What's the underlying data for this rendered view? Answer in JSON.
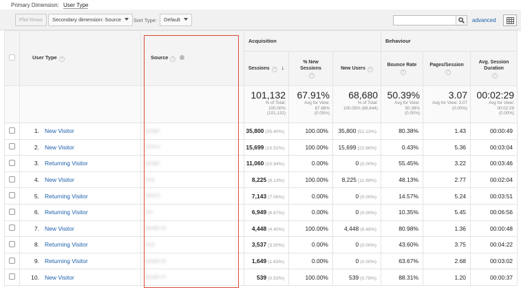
{
  "primary_dimension": {
    "label": "Primary Dimension:",
    "value": "User Type"
  },
  "toolbar": {
    "plot_rows": "Plot Rows",
    "secondary_dimension": "Secondary dimension: Source",
    "sort_type_label": "Sort Type:",
    "sort_type_value": "Default",
    "search_value": "",
    "advanced": "advanced"
  },
  "groups": {
    "acquisition": "Acquisition",
    "behaviour": "Behaviour"
  },
  "columns": {
    "user_type": "User Type",
    "source": "Source",
    "sessions": "Sessions",
    "new_sessions": "% New Sessions",
    "new_users": "New Users",
    "bounce_rate": "Bounce Rate",
    "pages_session": "Pages/Session",
    "avg_duration": "Avg. Session Duration"
  },
  "totals": {
    "sessions": {
      "value": "101,132",
      "line1": "% of Total:",
      "line2": "100.00%",
      "line3": "(101,132)"
    },
    "new_sessions": {
      "value": "67.91%",
      "line1": "Avg for View:",
      "line2": "67.88%",
      "line3": "(0.05%)"
    },
    "new_users": {
      "value": "68,680",
      "line1": "% of Total:",
      "line2": "100.05% (68,644)",
      "line3": ""
    },
    "bounce_rate": {
      "value": "50.39%",
      "line1": "Avg for View:",
      "line2": "50.39%",
      "line3": "(0.00%)"
    },
    "pages_session": {
      "value": "3.07",
      "line1": "Avg for View: 3.07",
      "line2": "(0.00%)",
      "line3": ""
    },
    "avg_duration": {
      "value": "00:02:29",
      "line1": "Avg for View:",
      "line2": "00:02:29",
      "line3": "(0.00%)"
    }
  },
  "rows": [
    {
      "idx": "1.",
      "user_type": "New Visitor",
      "source": "google",
      "sessions": "35,800",
      "sessions_pct": "(35.40%)",
      "new_sessions": "100.00%",
      "new_users": "35,800",
      "new_users_pct": "(52.13%)",
      "bounce_rate": "80.38%",
      "pages_session": "1.43",
      "avg_duration": "00:00:49"
    },
    {
      "idx": "2.",
      "user_type": "New Visitor",
      "source": "(direct)",
      "sessions": "15,699",
      "sessions_pct": "(15.52%)",
      "new_sessions": "100.00%",
      "new_users": "15,699",
      "new_users_pct": "(22.86%)",
      "bounce_rate": "0.43%",
      "pages_session": "5.36",
      "avg_duration": "00:03:04"
    },
    {
      "idx": "3.",
      "user_type": "Returning Visitor",
      "source": "google",
      "sessions": "11,060",
      "sessions_pct": "(10.94%)",
      "new_sessions": "0.00%",
      "new_users": "0",
      "new_users_pct": "(0.00%)",
      "bounce_rate": "55.45%",
      "pages_session": "3.22",
      "avg_duration": "00:03:46"
    },
    {
      "idx": "4.",
      "user_type": "New Visitor",
      "source": "bing",
      "sessions": "8,225",
      "sessions_pct": "(8.13%)",
      "new_sessions": "100.00%",
      "new_users": "8,225",
      "new_users_pct": "(11.98%)",
      "bounce_rate": "48.13%",
      "pages_session": "2.77",
      "avg_duration": "00:02:04"
    },
    {
      "idx": "5.",
      "user_type": "Returning Visitor",
      "source": "(direct)",
      "sessions": "7,143",
      "sessions_pct": "(7.06%)",
      "new_sessions": "0.00%",
      "new_users": "0",
      "new_users_pct": "(0.00%)",
      "bounce_rate": "14.57%",
      "pages_session": "5.24",
      "avg_duration": "00:03:51"
    },
    {
      "idx": "6.",
      "user_type": "Returning Visitor",
      "source": "site",
      "sessions": "6,949",
      "sessions_pct": "(6.87%)",
      "new_sessions": "0.00%",
      "new_users": "0",
      "new_users_pct": "(0.00%)",
      "bounce_rate": "10.35%",
      "pages_session": "5.45",
      "avg_duration": "00:06:56"
    },
    {
      "idx": "7.",
      "user_type": "New Visitor",
      "source": "google.de",
      "sessions": "4,448",
      "sessions_pct": "(4.40%)",
      "new_sessions": "100.00%",
      "new_users": "4,448",
      "new_users_pct": "(6.48%)",
      "bounce_rate": "80.98%",
      "pages_session": "1.36",
      "avg_duration": "00:00:48"
    },
    {
      "idx": "8.",
      "user_type": "Returning Visitor",
      "source": "bing",
      "sessions": "3,537",
      "sessions_pct": "(3.50%)",
      "new_sessions": "0.00%",
      "new_users": "0",
      "new_users_pct": "(0.00%)",
      "bounce_rate": "43.60%",
      "pages_session": "3.75",
      "avg_duration": "00:04:22"
    },
    {
      "idx": "9.",
      "user_type": "Returning Visitor",
      "source": "google.de",
      "sessions": "1,649",
      "sessions_pct": "(1.63%)",
      "new_sessions": "0.00%",
      "new_users": "0",
      "new_users_pct": "(0.00%)",
      "bounce_rate": "63.67%",
      "pages_session": "2.68",
      "avg_duration": "00:03:02"
    },
    {
      "idx": "10.",
      "user_type": "New Visitor",
      "source": "google.co",
      "sessions": "539",
      "sessions_pct": "(0.53%)",
      "new_sessions": "100.00%",
      "new_users": "539",
      "new_users_pct": "(0.78%)",
      "bounce_rate": "88.31%",
      "pages_session": "1.20",
      "avg_duration": "00:00:37"
    }
  ],
  "icons": {
    "help": "help-icon",
    "search": "search-icon",
    "grid": "grid-view-icon",
    "sort": "sort-descending-icon",
    "remove": "remove-dimension-icon"
  },
  "colors": {
    "link": "#1a5faa",
    "highlight_box": "#d84a32"
  }
}
